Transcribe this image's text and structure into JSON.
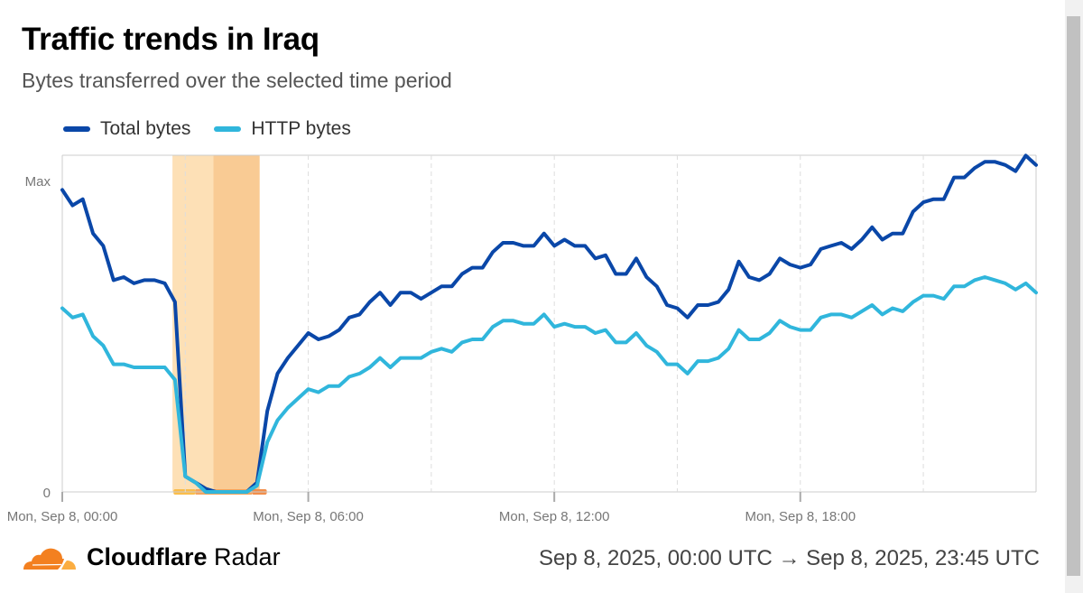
{
  "header": {
    "title": "Traffic trends in Iraq",
    "subtitle": "Bytes transferred over the selected time period"
  },
  "legend": [
    {
      "label": "Total bytes",
      "color": "#0a47a8"
    },
    {
      "label": "HTTP bytes",
      "color": "#30b6dc"
    }
  ],
  "footer": {
    "brand_bold": "Cloudflare",
    "brand_light": "Radar",
    "date_range": "Sep 8, 2025, 00:00 UTC → Sep 8, 2025, 23:45 UTC"
  },
  "chart_data": {
    "type": "line",
    "x_start": "Sep 8, 2025, 00:00 UTC",
    "x_step_minutes": 15,
    "x_end": "Sep 8, 2025, 23:45 UTC",
    "y_ticks": [
      "0",
      "Max"
    ],
    "y_unit": "percent of Max",
    "x_ticks": [
      "Mon, Sep 8, 00:00",
      "Mon, Sep 8, 06:00",
      "Mon, Sep 8, 12:00",
      "Mon, Sep 8, 18:00"
    ],
    "grid": "vertical dashed every 3 hours",
    "legend_position": "top-left",
    "series": [
      {
        "name": "Total bytes",
        "color": "#0a47a8",
        "values": [
          97,
          92,
          94,
          83,
          79,
          68,
          69,
          67,
          68,
          68,
          67,
          61,
          5,
          3,
          1,
          0,
          0,
          0,
          0,
          3,
          26,
          38,
          43,
          47,
          51,
          49,
          50,
          52,
          56,
          57,
          61,
          64,
          60,
          64,
          64,
          62,
          64,
          66,
          66,
          70,
          72,
          72,
          77,
          80,
          80,
          79,
          79,
          83,
          79,
          81,
          79,
          79,
          75,
          76,
          70,
          70,
          75,
          69,
          66,
          60,
          59,
          56,
          60,
          60,
          61,
          65,
          74,
          69,
          68,
          70,
          75,
          73,
          72,
          73,
          78,
          79,
          80,
          78,
          81,
          85,
          81,
          83,
          83,
          90,
          93,
          94,
          94,
          101,
          101,
          104,
          106,
          106,
          105,
          103,
          108,
          105
        ]
      },
      {
        "name": "HTTP bytes",
        "color": "#30b6dc",
        "values": [
          59,
          56,
          57,
          50,
          47,
          41,
          41,
          40,
          40,
          40,
          40,
          36,
          5,
          3,
          0,
          0,
          0,
          0,
          0,
          2,
          16,
          23,
          27,
          30,
          33,
          32,
          34,
          34,
          37,
          38,
          40,
          43,
          40,
          43,
          43,
          43,
          45,
          46,
          45,
          48,
          49,
          49,
          53,
          55,
          55,
          54,
          54,
          57,
          53,
          54,
          53,
          53,
          51,
          52,
          48,
          48,
          51,
          47,
          45,
          41,
          41,
          38,
          42,
          42,
          43,
          46,
          52,
          49,
          49,
          51,
          55,
          53,
          52,
          52,
          56,
          57,
          57,
          56,
          58,
          60,
          57,
          59,
          58,
          61,
          63,
          63,
          62,
          66,
          66,
          68,
          69,
          68,
          67,
          65,
          67,
          64
        ]
      }
    ],
    "annotations": [
      {
        "type": "outage-band",
        "start": "02:45",
        "end": "04:45",
        "color": "#fde0b6"
      },
      {
        "type": "outage-band-core",
        "start": "03:45",
        "end": "04:45",
        "color": "#f9cb94"
      }
    ]
  }
}
